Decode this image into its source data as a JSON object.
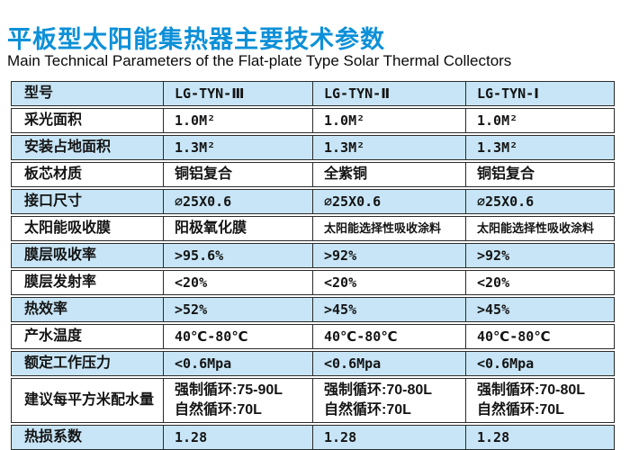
{
  "page": {
    "title": "平板型太阳能集热器主要技术参数",
    "subtitle": "Main Technical Parameters of the Flat-plate Type Solar Thermal Collectors"
  },
  "colors": {
    "title_blue": "#0d90d8",
    "row_blue": "#c7e5f6",
    "border": "#2b2b2b"
  },
  "table": {
    "header": {
      "label": "型号",
      "models": [
        "LG-TYN-Ⅲ",
        "LG-TYN-Ⅱ",
        "LG-TYN-Ⅰ"
      ]
    },
    "rows": [
      {
        "label": "采光面积",
        "values": [
          "1.0M²",
          "1.0M²",
          "1.0M²"
        ]
      },
      {
        "label": "安装占地面积",
        "values": [
          "1.3M²",
          "1.3M²",
          "1.3M²"
        ]
      },
      {
        "label": "板芯材质",
        "values": [
          "铜铝复合",
          "全紫铜",
          "铜铝复合"
        ]
      },
      {
        "label": "接口尺寸",
        "values": [
          "∅25X0.6",
          "∅25X0.6",
          "∅25X0.6"
        ]
      },
      {
        "label": "太阳能吸收膜",
        "values": [
          "阳极氧化膜",
          "太阳能选择性吸收涂料",
          "太阳能选择性吸收涂料"
        ]
      },
      {
        "label": "膜层吸收率",
        "values": [
          ">95.6%",
          ">92%",
          ">92%"
        ]
      },
      {
        "label": "膜层发射率",
        "values": [
          "<20%",
          "<20%",
          "<20%"
        ]
      },
      {
        "label": "热效率",
        "values": [
          ">52%",
          ">45%",
          ">45%"
        ]
      },
      {
        "label": "产水温度",
        "values": [
          "40℃-80℃",
          "40℃-80℃",
          "40℃-80℃"
        ]
      },
      {
        "label": "额定工作压力",
        "values": [
          "<0.6Mpa",
          "<0.6Mpa",
          "<0.6Mpa"
        ]
      },
      {
        "label": "建议每平方米配水量",
        "values": [
          "强制循环:75-90L\n自然循环:70L",
          "强制循环:70-80L\n自然循环:70L",
          "强制循环:70-80L\n自然循环:70L"
        ]
      },
      {
        "label": "热损系数",
        "values": [
          "1.28",
          "1.28",
          "1.28"
        ]
      }
    ]
  }
}
